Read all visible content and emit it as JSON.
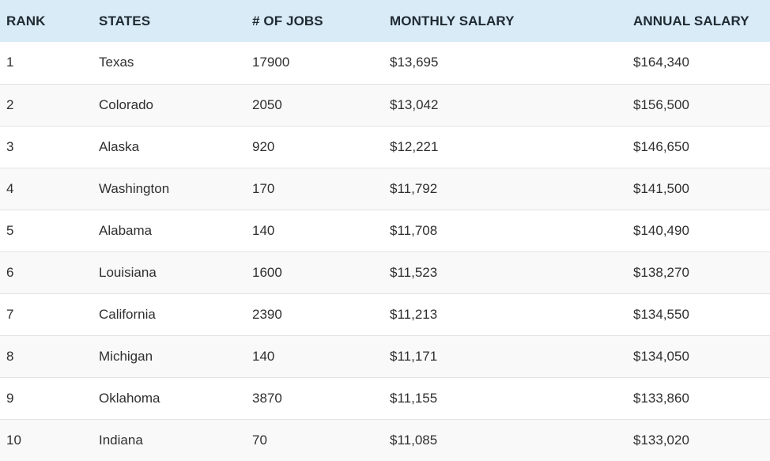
{
  "table": {
    "headers": [
      "RANK",
      "STATES",
      "# OF JOBS",
      "MONTHLY SALARY",
      "ANNUAL SALARY"
    ],
    "rows": [
      [
        "1",
        "Texas",
        "17900",
        "$13,695",
        "$164,340"
      ],
      [
        "2",
        "Colorado",
        "2050",
        "$13,042",
        "$156,500"
      ],
      [
        "3",
        "Alaska",
        "920",
        "$12,221",
        "$146,650"
      ],
      [
        "4",
        "Washington",
        "170",
        "$11,792",
        "$141,500"
      ],
      [
        "5",
        "Alabama",
        "140",
        "$11,708",
        "$140,490"
      ],
      [
        "6",
        "Louisiana",
        "1600",
        "$11,523",
        "$138,270"
      ],
      [
        "7",
        "California",
        "2390",
        "$11,213",
        "$134,550"
      ],
      [
        "8",
        "Michigan",
        "140",
        "$11,171",
        "$134,050"
      ],
      [
        "9",
        "Oklahoma",
        "3870",
        "$11,155",
        "$133,860"
      ],
      [
        "10",
        "Indiana",
        "70",
        "$11,085",
        "$133,020"
      ]
    ]
  },
  "colors": {
    "header_background": "#d9ebf6",
    "row_even_background": "#f9f9f9",
    "row_odd_background": "#ffffff",
    "row_divider": "#e3e3e3"
  }
}
